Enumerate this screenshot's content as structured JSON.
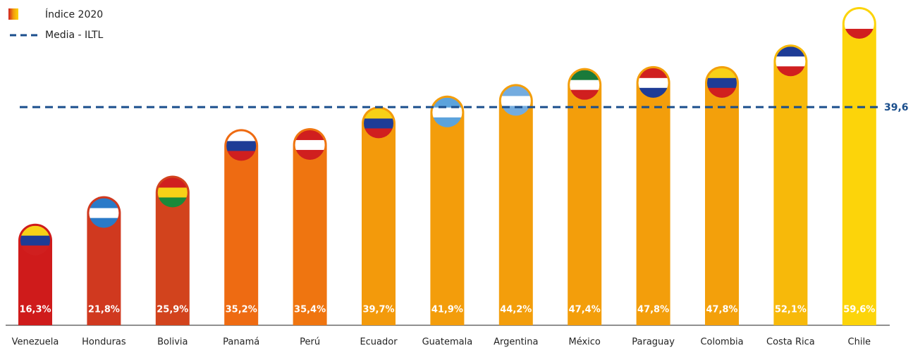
{
  "chart_data": {
    "type": "bar",
    "legend_label": "Índice 2020",
    "categories": [
      "Venezuela",
      "Honduras",
      "Bolivia",
      "Panamá",
      "Perú",
      "Ecuador",
      "Guatemala",
      "Argentina",
      "México",
      "Paraguay",
      "Colombia",
      "Costa Rica",
      "Chile"
    ],
    "values": [
      16.3,
      21.8,
      25.9,
      35.2,
      35.4,
      39.7,
      41.9,
      44.2,
      47.4,
      47.8,
      47.8,
      52.1,
      59.6
    ],
    "value_labels": [
      "16,3%",
      "21,8%",
      "25,9%",
      "35,2%",
      "35,4%",
      "39,7%",
      "41,9%",
      "44,2%",
      "47,4%",
      "47,8%",
      "47,8%",
      "52,1%",
      "59,6%"
    ],
    "colors": [
      "#cf1b1b",
      "#d0391f",
      "#d2431d",
      "#ee6b12",
      "#ef7510",
      "#f39a0b",
      "#f39d0b",
      "#f39e0b",
      "#f39e0b",
      "#f39e0b",
      "#f3a00b",
      "#f7b90a",
      "#fcd40a"
    ],
    "ylim": [
      -4,
      61
    ],
    "reference_line": {
      "name": "Media - ILTL",
      "value": 39.6,
      "label": "39,6",
      "color": "#1a4e8c"
    }
  }
}
